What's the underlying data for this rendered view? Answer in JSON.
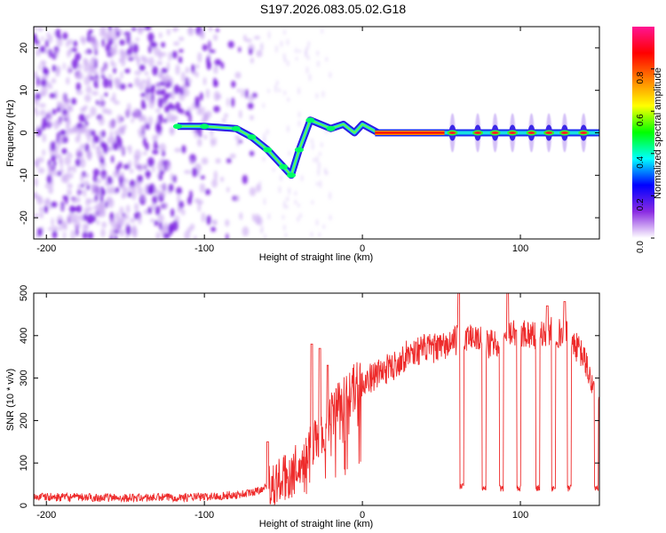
{
  "title": "S197.2026.083.05.02.G18",
  "chart_data": [
    {
      "type": "heatmap",
      "name": "spectrogram",
      "xlabel": "Height of straight line (km)",
      "ylabel": "Frequency (Hz)",
      "xlim": [
        -208,
        150
      ],
      "ylim": [
        -25,
        25
      ],
      "xticks": [
        -200,
        -100,
        0,
        100
      ],
      "yticks": [
        -20,
        -10,
        0,
        10,
        20
      ],
      "colorbar": {
        "label": "Normalized spectral amplitude",
        "range": [
          0,
          1
        ],
        "ticks": [
          0.0,
          0.2,
          0.4,
          0.6,
          0.8
        ],
        "tick_labels": [
          "0.0",
          "0.2",
          "0.4",
          "0.6",
          "0.8"
        ],
        "colormap": [
          "#ffffff",
          "#8a2be2",
          "#0000ff",
          "#00ffff",
          "#00ff00",
          "#ffff00",
          "#ff8000",
          "#ff0000",
          "#ff1493"
        ]
      },
      "features": [
        {
          "label": "noise",
          "x_range": [
            -208,
            -65
          ],
          "freq_range": [
            -25,
            25
          ],
          "amplitude": 0.08
        },
        {
          "label": "signal-trace",
          "points": [
            [
              -117,
              1.5
            ],
            [
              -100,
              1.5
            ],
            [
              -80,
              1
            ],
            [
              -70,
              -1
            ],
            [
              -60,
              -4
            ],
            [
              -50,
              -8
            ],
            [
              -45,
              -10
            ],
            [
              -40,
              -4
            ],
            [
              -33,
              3
            ],
            [
              -20,
              1
            ],
            [
              -12,
              2
            ],
            [
              -5,
              0
            ],
            [
              0,
              2
            ],
            [
              10,
              0
            ],
            [
              50,
              0
            ],
            [
              150,
              0
            ]
          ]
        },
        {
          "label": "carrier-line",
          "x_range": [
            8,
            52
          ],
          "freq": 0,
          "amplitude": 0.95
        },
        {
          "label": "pulses",
          "x": [
            57,
            73,
            84,
            95,
            107,
            118,
            128,
            140
          ],
          "amplitude": 0.9
        }
      ]
    },
    {
      "type": "line",
      "name": "snr",
      "xlabel": "Height of straight line (km)",
      "ylabel": "SNR (10 * v/v)",
      "xlim": [
        -208,
        150
      ],
      "ylim": [
        0,
        500
      ],
      "xticks": [
        -200,
        -100,
        0,
        100
      ],
      "yticks": [
        0,
        100,
        200,
        300,
        400,
        500
      ],
      "color": "#ee2b2b",
      "series": [
        {
          "name": "baseline",
          "x": [
            -208,
            -150,
            -100,
            -80,
            -70,
            -60,
            -50,
            -40,
            -30,
            -20,
            -10,
            0,
            10,
            20,
            30,
            40,
            50,
            60,
            70,
            80,
            90,
            100,
            110,
            120,
            130,
            140,
            150
          ],
          "values": [
            20,
            18,
            20,
            25,
            30,
            45,
            60,
            90,
            150,
            210,
            260,
            290,
            310,
            330,
            360,
            370,
            370,
            390,
            400,
            380,
            390,
            410,
            400,
            410,
            400,
            350,
            230
          ]
        },
        {
          "name": "dropouts",
          "x": [
            63,
            77,
            88,
            99,
            111,
            121,
            131,
            148
          ],
          "values": [
            45,
            40,
            40,
            40,
            40,
            40,
            40,
            40
          ]
        },
        {
          "name": "spikes",
          "x": [
            -60,
            -32,
            -27,
            -22,
            61,
            92,
            117,
            128
          ],
          "values": [
            150,
            380,
            370,
            330,
            500,
            500,
            470,
            480
          ]
        }
      ]
    }
  ]
}
